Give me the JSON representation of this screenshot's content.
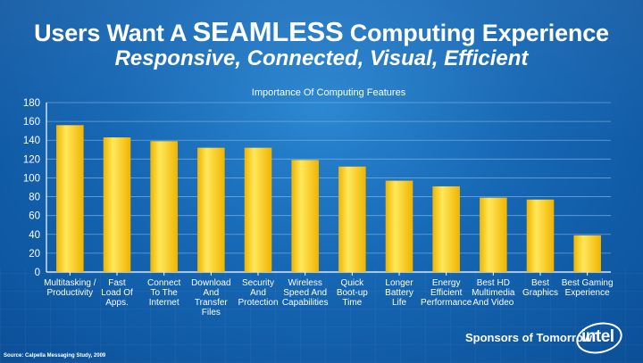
{
  "slide": {
    "title_pre": "Users Want A ",
    "title_emph": "SEAMLESS",
    "title_post": " Computing Experience",
    "subtitle": "Responsive, Connected, Visual, Efficient",
    "tagline": "Sponsors of Tomorrow",
    "tagline_tm": "™",
    "logo_text": "intel",
    "source": "Source: Calpella Messaging Study, 2009"
  },
  "colors": {
    "bar_light": "#ffe85a",
    "bar_dark": "#f0b400",
    "axis": "#ffffff",
    "grid": "#7fb4e6"
  },
  "chart_data": {
    "type": "bar",
    "title": "Importance Of Computing Features",
    "xlabel": "",
    "ylabel": "",
    "ylim": [
      0,
      180
    ],
    "yticks": [
      0,
      20,
      40,
      60,
      80,
      100,
      120,
      140,
      160,
      180
    ],
    "grid": true,
    "categories": [
      [
        "Multitasking /",
        "Productivity"
      ],
      [
        "Fast",
        "Load Of",
        "Apps."
      ],
      [
        "Connect",
        "To The",
        "Internet"
      ],
      [
        "Download",
        "And",
        "Transfer",
        "Files"
      ],
      [
        "Security",
        "And",
        "Protection"
      ],
      [
        "Wireless",
        "Speed And",
        "Capabilities"
      ],
      [
        "Quick",
        "Boot-up",
        "Time"
      ],
      [
        "Longer",
        "Battery",
        "Life"
      ],
      [
        "Energy",
        "Efficient",
        "Performance"
      ],
      [
        "Best HD",
        "Multimedia",
        "And Video"
      ],
      [
        "Best",
        "Graphics"
      ],
      [
        "Best Gaming",
        "Experience"
      ]
    ],
    "values": [
      156,
      143,
      139,
      132,
      132,
      119,
      112,
      97,
      91,
      79,
      77,
      39
    ]
  }
}
